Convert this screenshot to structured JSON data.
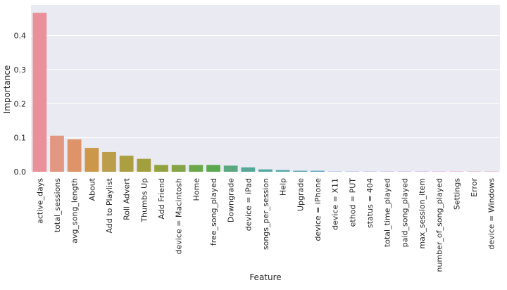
{
  "chart_data": {
    "type": "bar",
    "xlabel": "Feature",
    "ylabel": "Importance",
    "ylim": [
      0,
      0.49
    ],
    "yticks": [
      0.0,
      0.1,
      0.2,
      0.3,
      0.4
    ],
    "ytick_labels": [
      "0.0",
      "0.1",
      "0.2",
      "0.3",
      "0.4"
    ],
    "grid": true,
    "background": "#EAEAF2",
    "categories": [
      "active_days",
      "total_sessions",
      "avg_song_length",
      "About",
      "Add to Playlist",
      "Roll Advert",
      "Thumbs Up",
      "Add Friend",
      "device = Macintosh",
      "Home",
      "free_song_played",
      "Downgrade",
      "device = iPad",
      "songs_per_session",
      "Help",
      "Upgrade",
      "device = iPhone",
      "device = X11",
      "ethod = PUT",
      "status = 404",
      "total_time_played",
      "paid_song_played",
      "max_session_item",
      "number_of_song_played",
      "Settings",
      "Error",
      "device = Windows"
    ],
    "values": [
      0.467,
      0.106,
      0.095,
      0.07,
      0.058,
      0.047,
      0.038,
      0.02,
      0.02,
      0.02,
      0.02,
      0.018,
      0.013,
      0.007,
      0.005,
      0.003,
      0.003,
      0.0005,
      0.0003,
      0.0002,
      0.0001,
      0.0001,
      0.0001,
      0.0001,
      0.0001,
      0.0001,
      0.0001
    ],
    "colors": [
      "#E8919A",
      "#E29783",
      "#DE9468",
      "#CC9748",
      "#BB9D4A",
      "#AC9F42",
      "#A29F3E",
      "#93A240",
      "#85A447",
      "#6CA84A",
      "#5AA950",
      "#59A880",
      "#56A998",
      "#55A8A3",
      "#56A7AC",
      "#57A5B6",
      "#5AA2C3",
      "#77A1DB",
      "#8E9CE6",
      "#A79AE5",
      "#B795E1",
      "#C591E2",
      "#D28EDA",
      "#DF8BD2",
      "#E68CC7",
      "#E78CB8",
      "#E78EAB"
    ]
  }
}
